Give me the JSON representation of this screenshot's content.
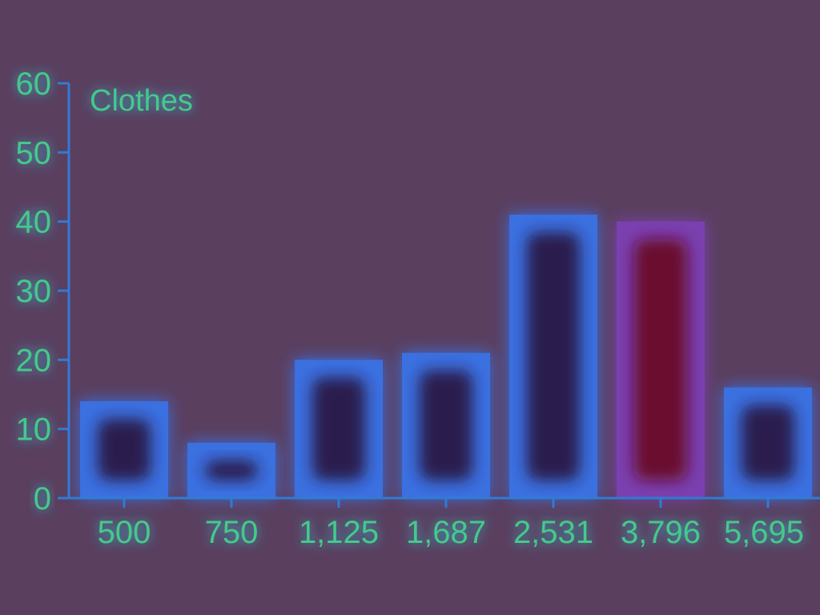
{
  "colors": {
    "background": "#5a3f5f",
    "bar_fill": "#3b6fe0",
    "bar_core": "#2a1a4e",
    "highlight_bar_fill": "#7a3fb0",
    "highlight_bar_core": "#6b0f2e",
    "axis": "#2f7bd6",
    "text": "#44c98a"
  },
  "chart_data": {
    "type": "bar",
    "title": "Clothes",
    "xlabel": "",
    "ylabel": "",
    "categories": [
      "500",
      "750",
      "1,125",
      "1,687",
      "2,531",
      "3,796",
      "5,695"
    ],
    "values": [
      14,
      8,
      20,
      21,
      41,
      40,
      16
    ],
    "highlighted_index": 5,
    "ylim": [
      0,
      60
    ],
    "yticks": [
      "0",
      "10",
      "20",
      "30",
      "40",
      "50",
      "60"
    ],
    "grid": false,
    "legend": "none"
  }
}
